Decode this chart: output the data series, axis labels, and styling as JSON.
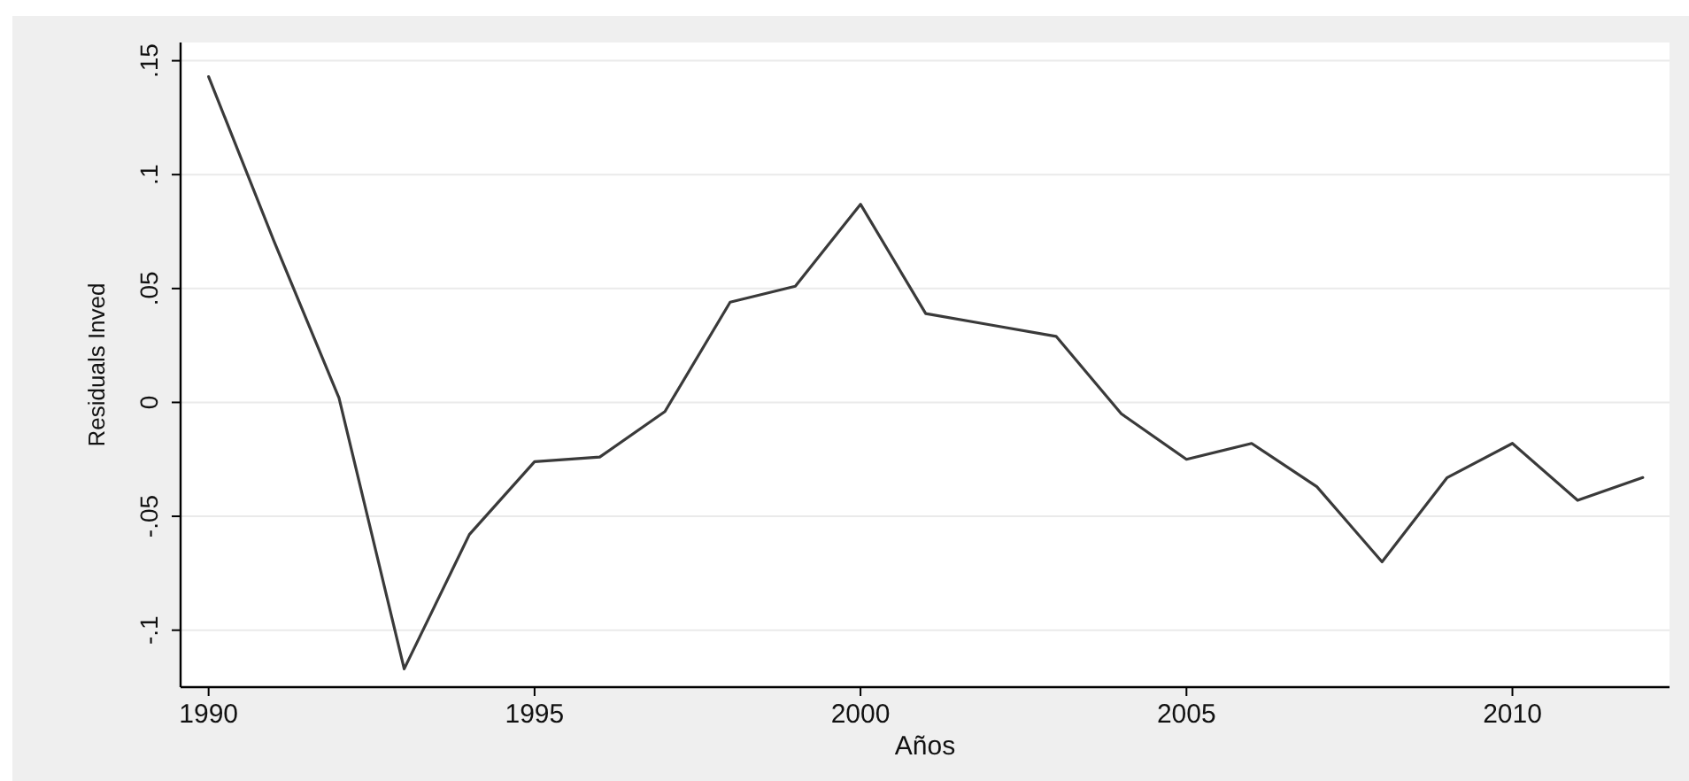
{
  "chart_data": {
    "type": "line",
    "xlabel": "Años",
    "ylabel": "Residuals Inved",
    "x": [
      1990,
      1991,
      1992,
      1993,
      1994,
      1995,
      1996,
      1997,
      1998,
      1999,
      2000,
      2001,
      2002,
      2003,
      2004,
      2005,
      2006,
      2007,
      2008,
      2009,
      2010,
      2011,
      2012
    ],
    "series": [
      {
        "color": "#3a3a3a",
        "values": [
          0.143,
          0.071,
          0.002,
          -0.117,
          -0.058,
          -0.026,
          -0.024,
          -0.004,
          0.044,
          0.051,
          0.087,
          0.039,
          0.034,
          0.029,
          -0.005,
          -0.025,
          -0.018,
          -0.037,
          -0.07,
          -0.033,
          -0.018,
          -0.043,
          -0.033
        ]
      }
    ],
    "xlim": [
      1989.57,
      2012.41
    ],
    "xticks": [
      1990,
      1995,
      2000,
      2005,
      2010
    ],
    "ylim": [
      -0.125,
      0.158
    ],
    "yticks": [
      {
        "value": 0.15,
        "label": ".15"
      },
      {
        "value": 0.1,
        "label": ".1"
      },
      {
        "value": 0.05,
        "label": ".05"
      },
      0,
      {
        "value": -0.05,
        "label": "-.05"
      },
      {
        "value": -0.1,
        "label": "-.1"
      }
    ],
    "grid": "y",
    "marker": "none",
    "line_style": "solid"
  }
}
